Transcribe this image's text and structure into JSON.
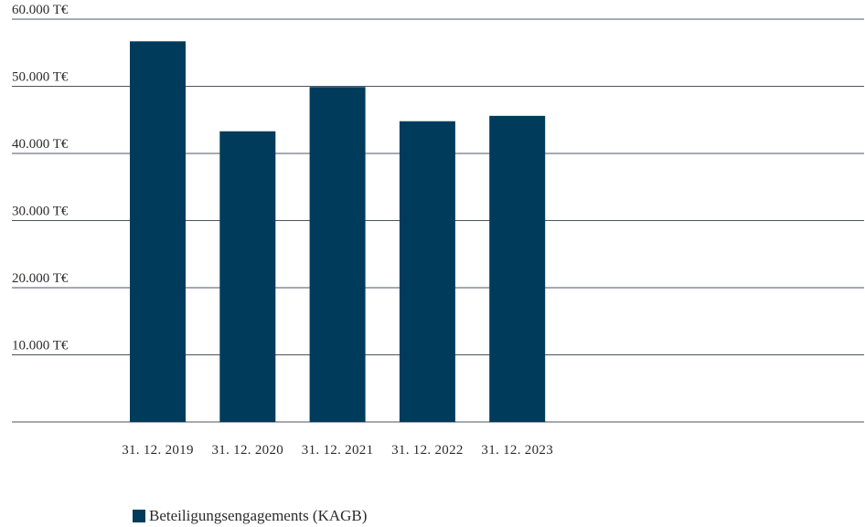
{
  "chart_data": {
    "type": "bar",
    "categories": [
      "31. 12. 2019",
      "31. 12. 2020",
      "31. 12. 2021",
      "31. 12. 2022",
      "31. 12. 2023"
    ],
    "series": [
      {
        "name": "Beteiligungsengagements (KAGB)",
        "values": [
          56700,
          43300,
          49900,
          44800,
          45600
        ],
        "color": "#003b5c"
      }
    ],
    "ylim": [
      0,
      60000
    ],
    "yticks": [
      10000,
      20000,
      30000,
      40000,
      50000,
      60000
    ],
    "ytick_labels": [
      "10.000 T€",
      "20.000 T€",
      "30.000 T€",
      "40.000 T€",
      "50.000 T€",
      "60.000 T€"
    ],
    "grid": true,
    "legend_position": "bottom-left",
    "colors": {
      "bar": "#003b5c",
      "grid": "#4a5560",
      "text": "#2b2b2b"
    }
  }
}
